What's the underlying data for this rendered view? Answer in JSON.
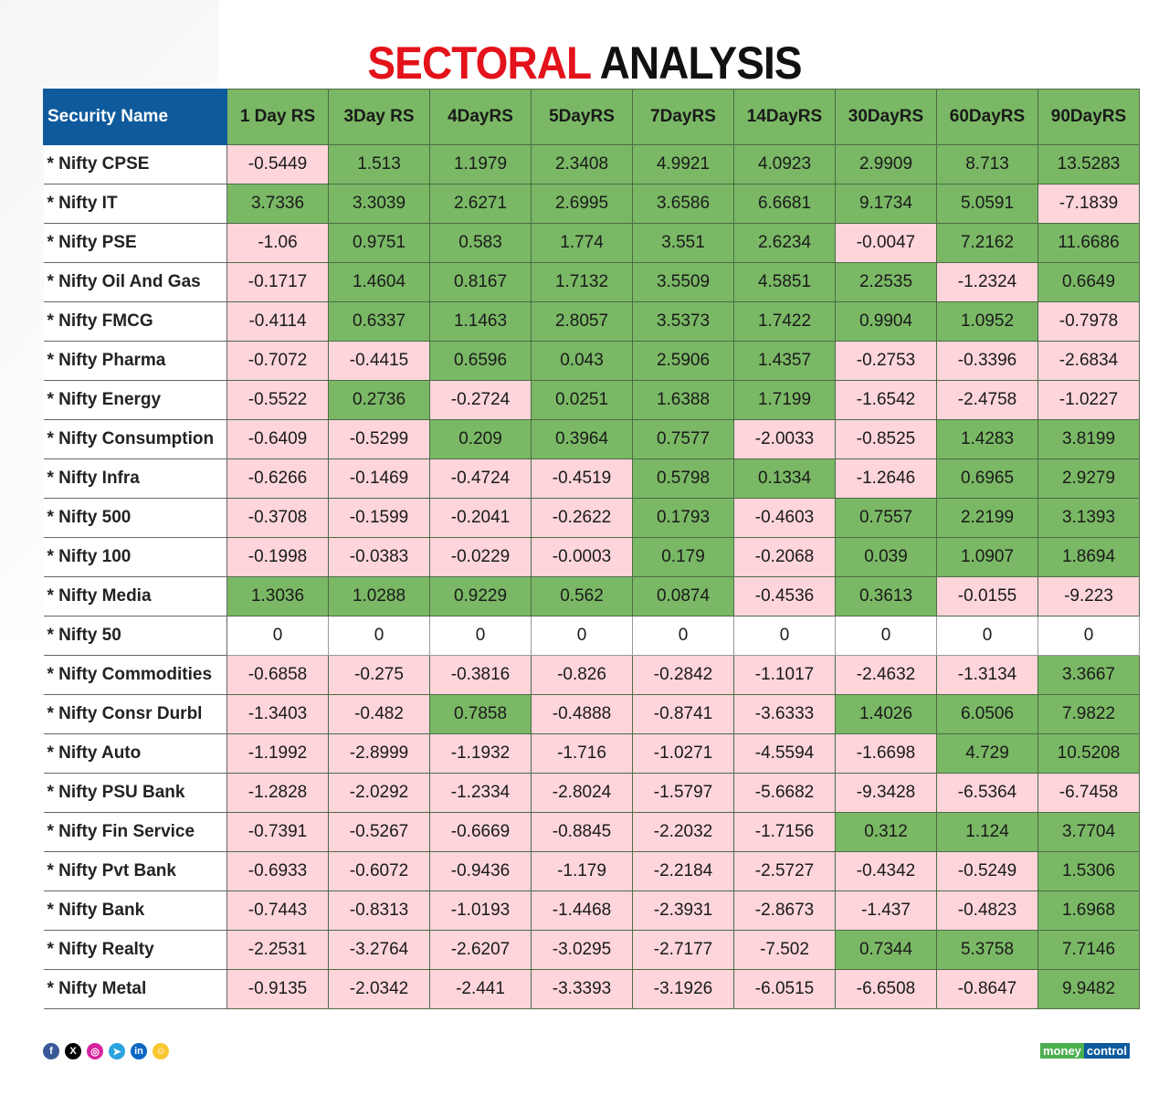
{
  "title": {
    "part1": "SECTORAL",
    "part2": "ANALYSIS"
  },
  "colors": {
    "header_blue": "#0e5a9c",
    "positive": "#7ab865",
    "negative": "#fdd5db",
    "zero": "#ffffff",
    "title_red": "#e3121b"
  },
  "social_icons": [
    "facebook-icon",
    "x-icon",
    "instagram-icon",
    "telegram-icon",
    "linkedin-icon",
    "snapchat-icon"
  ],
  "logo": {
    "part1": "money",
    "part2": "control"
  },
  "chart_data": {
    "type": "table",
    "columns": [
      "Security Name",
      "1 Day RS",
      "3Day RS",
      "4DayRS",
      "5DayRS",
      "7DayRS",
      "14DayRS",
      "30DayRS",
      "60DayRS",
      "90DayRS"
    ],
    "rows": [
      [
        "* Nifty CPSE",
        "-0.5449",
        "1.513",
        "1.1979",
        "2.3408",
        "4.9921",
        "4.0923",
        "2.9909",
        "8.713",
        "13.5283"
      ],
      [
        "* Nifty IT",
        "3.7336",
        "3.3039",
        "2.6271",
        "2.6995",
        "3.6586",
        "6.6681",
        "9.1734",
        "5.0591",
        "-7.1839"
      ],
      [
        "* Nifty PSE",
        "-1.06",
        "0.9751",
        "0.583",
        "1.774",
        "3.551",
        "2.6234",
        "-0.0047",
        "7.2162",
        "11.6686"
      ],
      [
        "* Nifty Oil And Gas",
        "-0.1717",
        "1.4604",
        "0.8167",
        "1.7132",
        "3.5509",
        "4.5851",
        "2.2535",
        "-1.2324",
        "0.6649"
      ],
      [
        "* Nifty FMCG",
        "-0.4114",
        "0.6337",
        "1.1463",
        "2.8057",
        "3.5373",
        "1.7422",
        "0.9904",
        "1.0952",
        "-0.7978"
      ],
      [
        "* Nifty Pharma",
        "-0.7072",
        "-0.4415",
        "0.6596",
        "0.043",
        "2.5906",
        "1.4357",
        "-0.2753",
        "-0.3396",
        "-2.6834"
      ],
      [
        "* Nifty Energy",
        "-0.5522",
        "0.2736",
        "-0.2724",
        "0.0251",
        "1.6388",
        "1.7199",
        "-1.6542",
        "-2.4758",
        "-1.0227"
      ],
      [
        "* Nifty Consumption",
        "-0.6409",
        "-0.5299",
        "0.209",
        "0.3964",
        "0.7577",
        "-2.0033",
        "-0.8525",
        "1.4283",
        "3.8199"
      ],
      [
        "* Nifty Infra",
        "-0.6266",
        "-0.1469",
        "-0.4724",
        "-0.4519",
        "0.5798",
        "0.1334",
        "-1.2646",
        "0.6965",
        "2.9279"
      ],
      [
        "* Nifty 500",
        "-0.3708",
        "-0.1599",
        "-0.2041",
        "-0.2622",
        "0.1793",
        "-0.4603",
        "0.7557",
        "2.2199",
        "3.1393"
      ],
      [
        "* Nifty 100",
        "-0.1998",
        "-0.0383",
        "-0.0229",
        "-0.0003",
        "0.179",
        "-0.2068",
        "0.039",
        "1.0907",
        "1.8694"
      ],
      [
        "* Nifty Media",
        "1.3036",
        "1.0288",
        "0.9229",
        "0.562",
        "0.0874",
        "-0.4536",
        "0.3613",
        "-0.0155",
        "-9.223"
      ],
      [
        "* Nifty 50",
        "0",
        "0",
        "0",
        "0",
        "0",
        "0",
        "0",
        "0",
        "0"
      ],
      [
        "* Nifty Commodities",
        "-0.6858",
        "-0.275",
        "-0.3816",
        "-0.826",
        "-0.2842",
        "-1.1017",
        "-2.4632",
        "-1.3134",
        "3.3667"
      ],
      [
        "* Nifty Consr Durbl",
        "-1.3403",
        "-0.482",
        "0.7858",
        "-0.4888",
        "-0.8741",
        "-3.6333",
        "1.4026",
        "6.0506",
        "7.9822"
      ],
      [
        "* Nifty Auto",
        "-1.1992",
        "-2.8999",
        "-1.1932",
        "-1.716",
        "-1.0271",
        "-4.5594",
        "-1.6698",
        "4.729",
        "10.5208"
      ],
      [
        "* Nifty PSU Bank",
        "-1.2828",
        "-2.0292",
        "-1.2334",
        "-2.8024",
        "-1.5797",
        "-5.6682",
        "-9.3428",
        "-6.5364",
        "-6.7458"
      ],
      [
        "* Nifty Fin Service",
        "-0.7391",
        "-0.5267",
        "-0.6669",
        "-0.8845",
        "-2.2032",
        "-1.7156",
        "0.312",
        "1.124",
        "3.7704"
      ],
      [
        "* Nifty Pvt Bank",
        "-0.6933",
        "-0.6072",
        "-0.9436",
        "-1.179",
        "-2.2184",
        "-2.5727",
        "-0.4342",
        "-0.5249",
        "1.5306"
      ],
      [
        "* Nifty Bank",
        "-0.7443",
        "-0.8313",
        "-1.0193",
        "-1.4468",
        "-2.3931",
        "-2.8673",
        "-1.437",
        "-0.4823",
        "1.6968"
      ],
      [
        "* Nifty Realty",
        "-2.2531",
        "-3.2764",
        "-2.6207",
        "-3.0295",
        "-2.7177",
        "-7.502",
        "0.7344",
        "5.3758",
        "7.7146"
      ],
      [
        "* Nifty Metal",
        "-0.9135",
        "-2.0342",
        "-2.441",
        "-3.3393",
        "-3.1926",
        "-6.0515",
        "-6.6508",
        "-0.8647",
        "9.9482"
      ]
    ]
  }
}
